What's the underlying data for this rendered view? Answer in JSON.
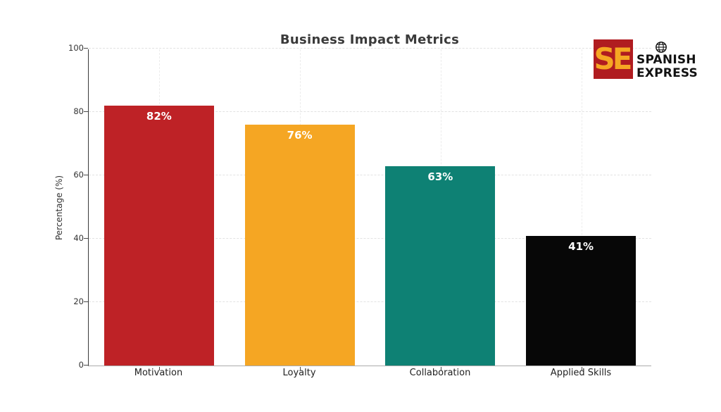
{
  "chart_data": {
    "type": "bar",
    "title": "Business Impact Metrics",
    "categories": [
      "Motivation",
      "Loyalty",
      "Collaboration",
      "Applied Skills"
    ],
    "values": [
      82,
      76,
      63,
      41
    ],
    "value_labels": [
      "82%",
      "76%",
      "63%",
      "41%"
    ],
    "bar_colors": [
      "#be2226",
      "#f5a623",
      "#0e8174",
      "#070707"
    ],
    "value_label_color": "#ffffff",
    "xlabel": "",
    "ylabel": "Percentage (%)",
    "ylim": [
      0,
      100
    ],
    "yticks": [
      0,
      20,
      40,
      60,
      80,
      100
    ],
    "grid": "dashed light-gray horizontal and vertical gridlines",
    "legend": "none",
    "background": "#ffffff"
  },
  "logo": {
    "monogram": "SE",
    "line1": "SPANISH",
    "line2": "EXPRESS",
    "square_color": "#b01c20",
    "monogram_color": "#f6a723",
    "globe_icon": "globe-icon"
  }
}
